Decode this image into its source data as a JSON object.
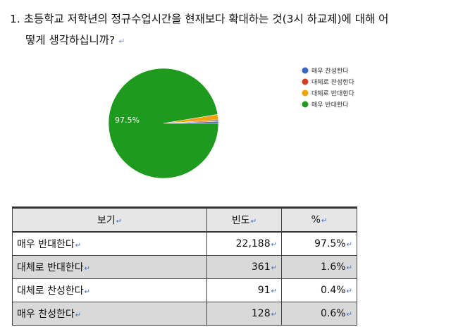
{
  "question": {
    "line1": "1. 초등학교 저학년의 정규수업시간을 현재보다 확대하는 것(3시 하교제)에 대해 어",
    "line2": "떻게 생각하십니까?"
  },
  "chart_data": {
    "type": "pie",
    "title": "",
    "slices": [
      {
        "label": "매우 찬성한다",
        "value": 0.6,
        "color": "#3a66c4"
      },
      {
        "label": "대체로 찬성한다",
        "value": 0.4,
        "color": "#d2401e"
      },
      {
        "label": "대체로 반대한다",
        "value": 1.6,
        "color": "#f0a30a"
      },
      {
        "label": "매우 반대한다",
        "value": 97.5,
        "color": "#1e9a1e"
      }
    ],
    "data_label": "97.5%",
    "legend_position": "right",
    "legend": [
      "매우 찬성한다",
      "대체로 찬성한다",
      "대체로 반대한다",
      "매우 반대한다"
    ]
  },
  "table": {
    "headers": [
      "보기",
      "빈도",
      "%"
    ],
    "rows": [
      {
        "label": "매우 반대한다",
        "freq": "22,188",
        "pct": "97.5%"
      },
      {
        "label": "대체로 반대한다",
        "freq": "361",
        "pct": "1.6%"
      },
      {
        "label": "대체로 찬성한다",
        "freq": "91",
        "pct": "0.4%"
      },
      {
        "label": "매우 찬성한다",
        "freq": "128",
        "pct": "0.6%"
      }
    ]
  }
}
